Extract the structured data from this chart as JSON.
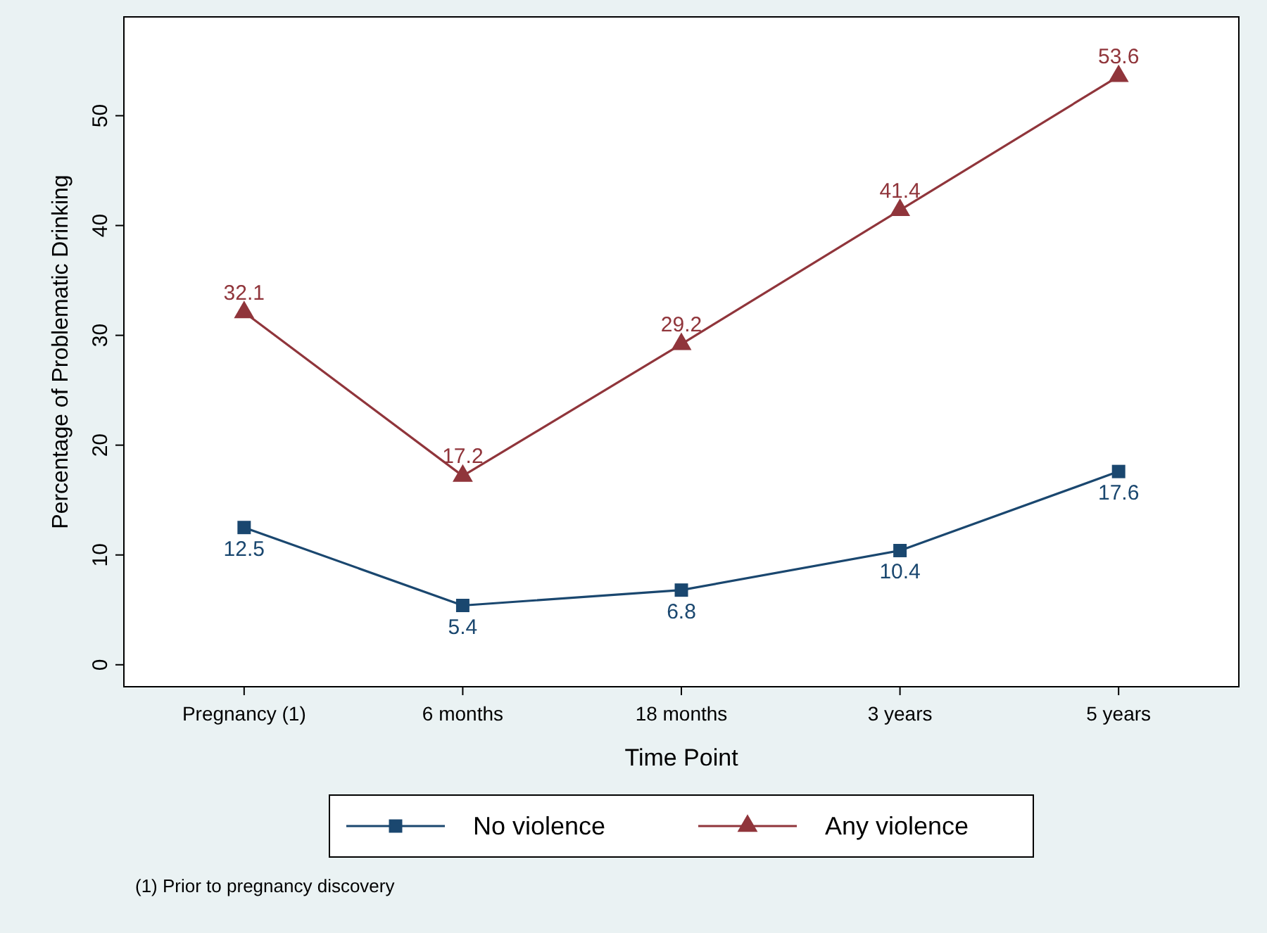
{
  "chart_data": {
    "type": "line",
    "xlabel": "Time Point",
    "ylabel": "Percentage of Problematic Drinking",
    "categories": [
      "Pregnancy (1)",
      "6 months",
      "18 months",
      "3 years",
      "5 years"
    ],
    "series": [
      {
        "name": "No violence",
        "color": "#1a476f",
        "marker": "square",
        "values": [
          12.5,
          5.4,
          6.8,
          10.4,
          17.6
        ]
      },
      {
        "name": "Any violence",
        "color": "#90353b",
        "marker": "triangle",
        "values": [
          32.1,
          17.2,
          29.2,
          41.4,
          53.6
        ]
      }
    ],
    "ylim": [
      -2,
      59
    ],
    "yticks": [
      0,
      10,
      20,
      30,
      40,
      50
    ],
    "grid": false,
    "legend": "bottom",
    "data_labels": true,
    "annotations": [
      "(1) Prior to pregnancy discovery"
    ]
  }
}
